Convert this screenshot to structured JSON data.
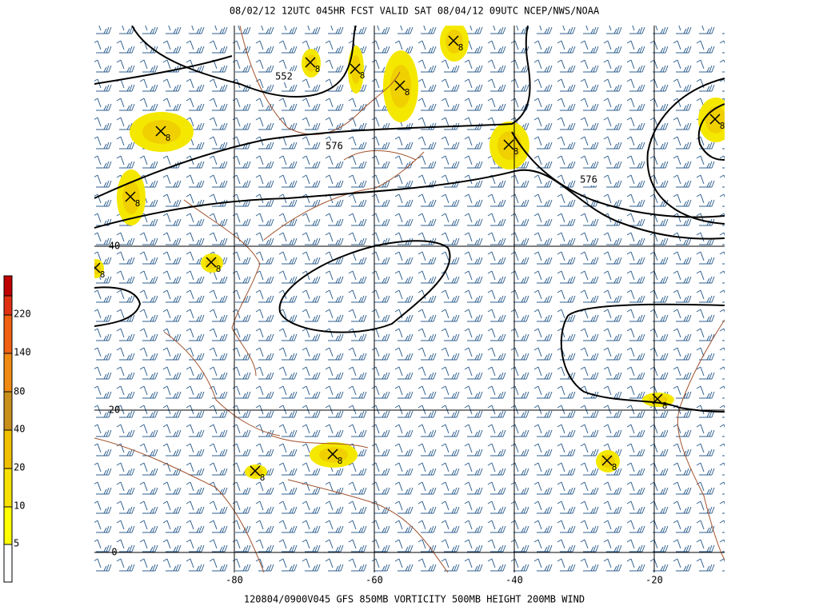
{
  "header": {
    "title": "08/02/12 12UTC 045HR FCST VALID SAT 08/04/12 09UTC NCEP/NWS/NOAA"
  },
  "footer": {
    "caption": "120804/0900V045 GFS 850MB VORTICITY 500MB HEIGHT 200MB WIND"
  },
  "legend": {
    "labels": [
      "5",
      "10",
      "20",
      "40",
      "80",
      "140",
      "220"
    ]
  },
  "map": {
    "latitude_labels": [
      "40",
      "20",
      "0"
    ],
    "longitude_labels": [
      "-80",
      "-60",
      "-40",
      "-20"
    ],
    "height_contour_labels": [
      "552",
      "576",
      "576"
    ],
    "vorticity_max_labels": [
      "8",
      "8",
      "8",
      "8",
      "8",
      "8",
      "8",
      "8",
      "8",
      "8",
      "8",
      "8",
      "8",
      "8"
    ]
  }
}
